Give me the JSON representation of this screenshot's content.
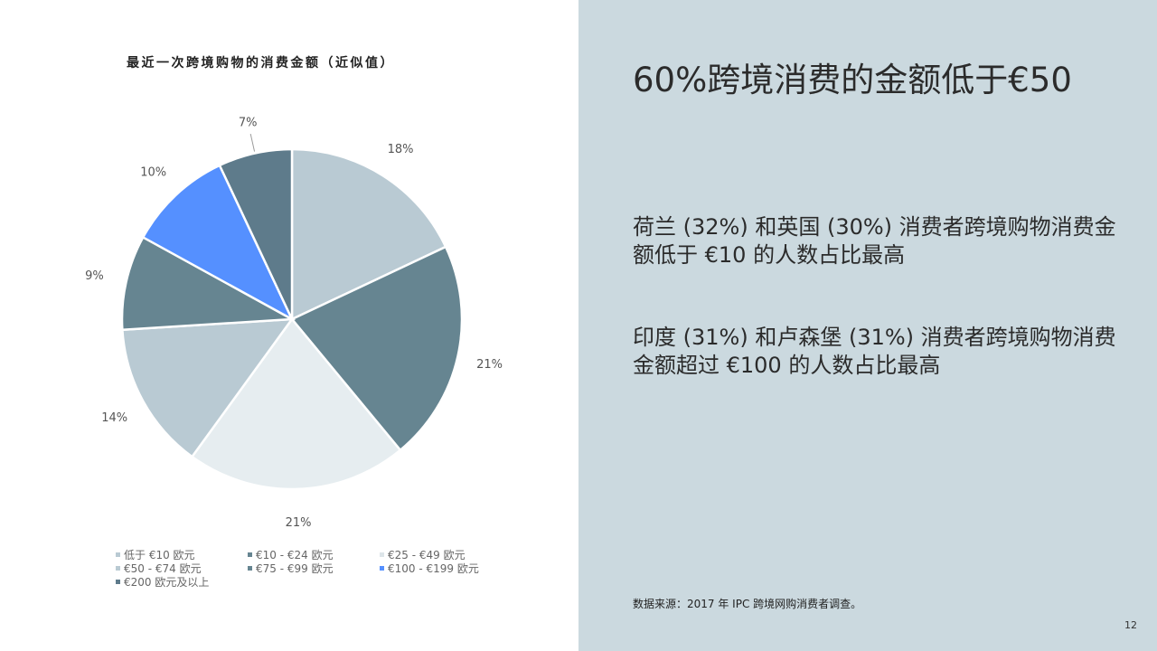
{
  "chart_data": {
    "type": "pie",
    "title": "最近一次跨境购物的消费金额（近似值）",
    "categories": [
      "低于 €10 欧元",
      "€10 - €24 欧元",
      "€25 - €49 欧元",
      "€50 - €74 欧元",
      "€75 - €99 欧元",
      "€100 - €199 欧元",
      "€200 欧元及以上"
    ],
    "values": [
      18,
      21,
      21,
      14,
      9,
      10,
      7
    ],
    "labels": [
      "18%",
      "21%",
      "21%",
      "14%",
      "9%",
      "10%",
      "7%"
    ],
    "colors": [
      "#b9cad3",
      "#668591",
      "#e6edf0",
      "#b9cad3",
      "#668591",
      "#5590ff",
      "#5e7b8b"
    ],
    "legend_position": "bottom-left"
  },
  "right_panel": {
    "headline": "60%跨境消费的金额低于€50",
    "stat_1": "荷兰 (32%) 和英国 (30%) 消费者跨境购物消费金额低于 €10 的人数占比最高",
    "stat_2": "印度 (31%) 和卢森堡 (31%) 消费者跨境购物消费金额超过 €100 的人数占比最高",
    "source": "数据来源：2017 年 IPC 跨境网购消费者调查。",
    "page_number": "12"
  }
}
